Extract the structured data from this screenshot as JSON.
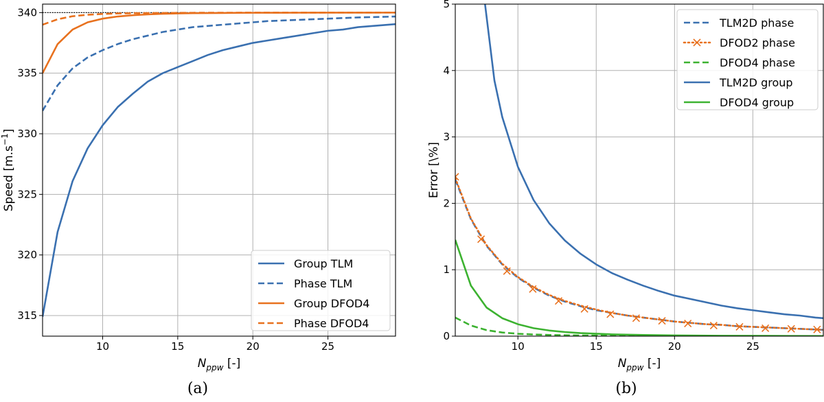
{
  "chart_data": [
    {
      "type": "line",
      "panel": "(a)",
      "xlabel_main": "N",
      "xlabel_sub": "ppw",
      "xlabel_tail": " [-]",
      "ylabel": "Speed [m.s",
      "ylabel_sup": "−1",
      "ylabel_tail": "]",
      "xlim": [
        6,
        29.5
      ],
      "ylim": [
        313.3,
        340.7
      ],
      "xticks": [
        10,
        15,
        20,
        25
      ],
      "yticks": [
        315,
        320,
        325,
        330,
        335,
        340
      ],
      "grid": true,
      "legend_position": "lower-right",
      "reference_line": {
        "y": 340,
        "style": "dotted",
        "color": "#000000"
      },
      "series": [
        {
          "name": "Group TLM",
          "color": "#3a70b0",
          "dash": "solid",
          "x": [
            6,
            7,
            8,
            9,
            10,
            11,
            12,
            13,
            14,
            15,
            16,
            17,
            18,
            19,
            20,
            21,
            22,
            23,
            24,
            25,
            26,
            27,
            28,
            29,
            29.5
          ],
          "y": [
            314.9,
            321.9,
            326.1,
            328.8,
            330.7,
            332.2,
            333.3,
            334.3,
            335.0,
            335.5,
            336.0,
            336.5,
            336.9,
            337.2,
            337.5,
            337.7,
            337.9,
            338.1,
            338.3,
            338.5,
            338.6,
            338.8,
            338.9,
            339.0,
            339.05
          ]
        },
        {
          "name": "Phase TLM",
          "color": "#3a70b0",
          "dash": "dashed",
          "x": [
            6,
            7,
            8,
            9,
            10,
            11,
            12,
            13,
            14,
            15,
            16,
            17,
            18,
            19,
            20,
            21,
            22,
            23,
            24,
            25,
            26,
            27,
            28,
            29,
            29.5
          ],
          "y": [
            331.9,
            334.0,
            335.4,
            336.3,
            336.9,
            337.4,
            337.8,
            338.1,
            338.4,
            338.6,
            338.8,
            338.9,
            339.0,
            339.1,
            339.2,
            339.3,
            339.35,
            339.4,
            339.45,
            339.5,
            339.55,
            339.6,
            339.63,
            339.66,
            339.68
          ]
        },
        {
          "name": "Group DFOD4",
          "color": "#e8711e",
          "dash": "solid",
          "x": [
            6,
            7,
            8,
            9,
            10,
            11,
            12,
            13,
            14,
            15,
            16,
            17,
            18,
            19,
            20,
            21,
            22,
            23,
            24,
            25,
            26,
            27,
            28,
            29,
            29.5
          ],
          "y": [
            335.0,
            337.4,
            338.6,
            339.2,
            339.5,
            339.68,
            339.78,
            339.85,
            339.9,
            339.93,
            339.95,
            339.96,
            339.97,
            339.98,
            339.985,
            339.99,
            339.99,
            339.993,
            339.995,
            339.996,
            339.997,
            339.998,
            339.998,
            339.999,
            339.999
          ]
        },
        {
          "name": "Phase DFOD4",
          "color": "#e8711e",
          "dash": "dashed",
          "x": [
            6,
            7,
            8,
            9,
            10,
            11,
            12,
            13,
            14,
            15,
            16,
            17,
            18,
            19,
            20,
            21,
            22,
            23,
            24,
            25,
            26,
            27,
            28,
            29,
            29.5
          ],
          "y": [
            339.0,
            339.45,
            339.7,
            339.82,
            339.89,
            339.93,
            339.95,
            339.96,
            339.97,
            339.98,
            339.985,
            339.99,
            339.99,
            339.993,
            339.995,
            339.996,
            339.997,
            339.998,
            339.998,
            339.999,
            339.999,
            339.999,
            340.0,
            340.0,
            340.0
          ]
        }
      ]
    },
    {
      "type": "line",
      "panel": "(b)",
      "xlabel_main": "N",
      "xlabel_sub": "ppw",
      "xlabel_tail": " [-]",
      "ylabel": "Error [\\%]",
      "xlim": [
        6,
        29.5
      ],
      "ylim": [
        0,
        5
      ],
      "xticks": [
        10,
        15,
        20,
        25
      ],
      "yticks": [
        0,
        1,
        2,
        3,
        4,
        5
      ],
      "grid": true,
      "legend_position": "upper-right",
      "series": [
        {
          "name": "TLM2D phase",
          "color": "#3a70b0",
          "dash": "dashed",
          "marker": null,
          "x": [
            6,
            7,
            8,
            9,
            10,
            11,
            12,
            13,
            14,
            15,
            16,
            17,
            18,
            19,
            20,
            21,
            22,
            23,
            24,
            25,
            26,
            27,
            28,
            29,
            29.5
          ],
          "y": [
            2.36,
            1.76,
            1.36,
            1.08,
            0.88,
            0.73,
            0.61,
            0.52,
            0.45,
            0.39,
            0.35,
            0.31,
            0.28,
            0.25,
            0.22,
            0.2,
            0.18,
            0.17,
            0.15,
            0.14,
            0.13,
            0.12,
            0.11,
            0.1,
            0.095
          ]
        },
        {
          "name": "DFOD2 phase",
          "color": "#e8711e",
          "dash": "dotted",
          "marker": "x",
          "x": [
            6,
            7,
            8,
            9,
            10,
            11,
            12,
            13,
            14,
            15,
            16,
            17,
            18,
            19,
            20,
            21,
            22,
            23,
            24,
            25,
            26,
            27,
            28,
            29,
            29.5
          ],
          "y": [
            2.38,
            1.77,
            1.37,
            1.09,
            0.89,
            0.74,
            0.62,
            0.53,
            0.46,
            0.4,
            0.35,
            0.31,
            0.28,
            0.25,
            0.22,
            0.2,
            0.18,
            0.17,
            0.15,
            0.14,
            0.13,
            0.12,
            0.11,
            0.1,
            0.095
          ],
          "marker_x": [
            6,
            7.65,
            9.3,
            10.95,
            12.6,
            14.25,
            15.9,
            17.55,
            19.2,
            20.85,
            22.5,
            24.15,
            25.8,
            27.45,
            29.1
          ],
          "marker_y": [
            2.4,
            1.46,
            0.98,
            0.71,
            0.53,
            0.41,
            0.33,
            0.27,
            0.23,
            0.19,
            0.16,
            0.14,
            0.12,
            0.11,
            0.1
          ]
        },
        {
          "name": "DFOD4 phase",
          "color": "#3cb230",
          "dash": "dashed",
          "marker": null,
          "x": [
            6,
            7,
            8,
            9,
            10,
            11,
            12,
            14,
            16,
            18,
            20,
            23,
            26,
            29.5
          ],
          "y": [
            0.28,
            0.16,
            0.09,
            0.055,
            0.036,
            0.025,
            0.018,
            0.01,
            0.006,
            0.004,
            0.003,
            0.002,
            0.001,
            0.0005
          ]
        },
        {
          "name": "TLM2D group",
          "color": "#3a70b0",
          "dash": "solid",
          "marker": null,
          "x": [
            7.9,
            8.5,
            9,
            10,
            11,
            12,
            13,
            14,
            15,
            16,
            17,
            18,
            19,
            20,
            21,
            22,
            23,
            24,
            25,
            26,
            27,
            28,
            29,
            29.5
          ],
          "y": [
            5.0,
            3.85,
            3.3,
            2.55,
            2.05,
            1.7,
            1.44,
            1.24,
            1.08,
            0.95,
            0.85,
            0.76,
            0.68,
            0.61,
            0.56,
            0.51,
            0.46,
            0.42,
            0.39,
            0.36,
            0.33,
            0.31,
            0.28,
            0.27
          ]
        },
        {
          "name": "DFOD4 group",
          "color": "#3cb230",
          "dash": "solid",
          "marker": null,
          "x": [
            6,
            7,
            8,
            9,
            10,
            11,
            12,
            13,
            14,
            16,
            18,
            20,
            23,
            26,
            29.5
          ],
          "y": [
            1.45,
            0.76,
            0.43,
            0.27,
            0.18,
            0.12,
            0.085,
            0.062,
            0.046,
            0.027,
            0.017,
            0.011,
            0.006,
            0.004,
            0.002
          ]
        }
      ]
    }
  ],
  "legend_a_order": [
    "Group TLM",
    "Phase TLM",
    "Group DFOD4",
    "Phase DFOD4"
  ],
  "legend_b_order": [
    "TLM2D phase",
    "DFOD2 phase",
    "DFOD4 phase",
    "TLM2D group",
    "DFOD4 group"
  ]
}
